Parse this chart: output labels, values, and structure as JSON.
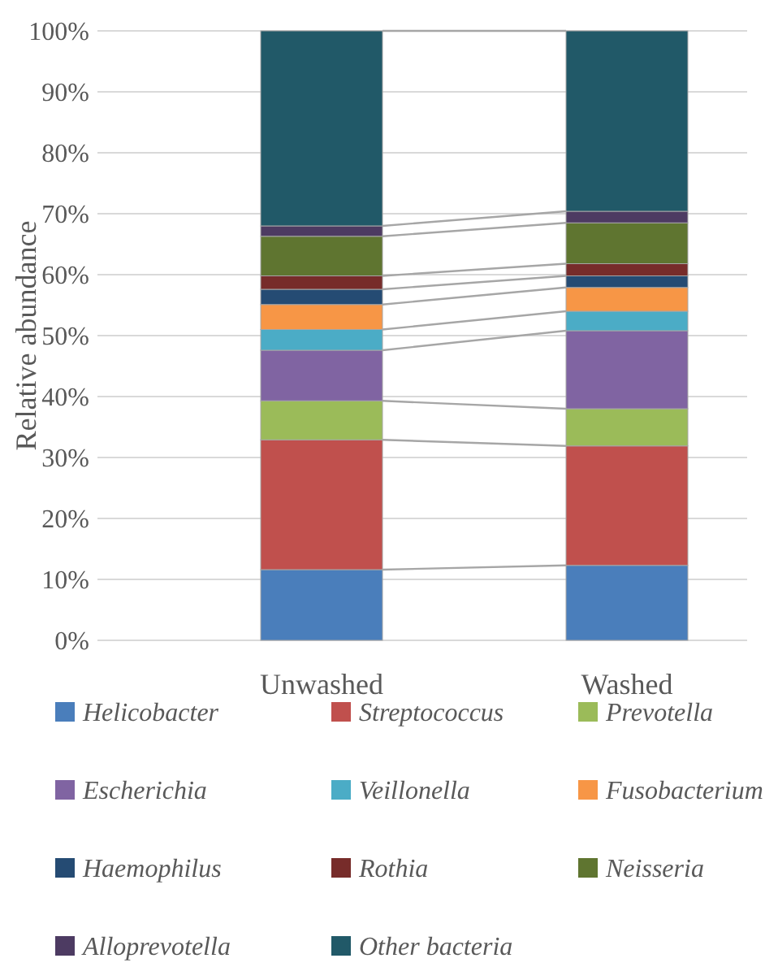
{
  "chart_data": {
    "type": "bar",
    "stacked": true,
    "ylabel": "Relative abundance",
    "categories": [
      "Unwashed",
      "Washed"
    ],
    "ylim": [
      0,
      100
    ],
    "yticks": [
      {
        "value": 0,
        "label": "0%"
      },
      {
        "value": 10,
        "label": "10%"
      },
      {
        "value": 20,
        "label": "20%"
      },
      {
        "value": 30,
        "label": "30%"
      },
      {
        "value": 40,
        "label": "40%"
      },
      {
        "value": 50,
        "label": "50%"
      },
      {
        "value": 60,
        "label": "60%"
      },
      {
        "value": 70,
        "label": "70%"
      },
      {
        "value": 80,
        "label": "80%"
      },
      {
        "value": 90,
        "label": "90%"
      },
      {
        "value": 100,
        "label": "100%"
      }
    ],
    "grid": "y",
    "legend": "bottom",
    "series": [
      {
        "name": "Helicobacter",
        "color": "#4a7ebb",
        "values": [
          11.6,
          12.3
        ]
      },
      {
        "name": "Streptococcus",
        "color": "#c0504d",
        "values": [
          21.3,
          19.6
        ]
      },
      {
        "name": "Prevotella",
        "color": "#9bbb59",
        "values": [
          6.4,
          6.1
        ]
      },
      {
        "name": "Escherichia",
        "color": "#8064a2",
        "values": [
          8.3,
          12.8
        ]
      },
      {
        "name": "Veillonella",
        "color": "#4bacc6",
        "values": [
          3.4,
          3.2
        ]
      },
      {
        "name": "Fusobacterium",
        "color": "#f79646",
        "values": [
          4.1,
          3.9
        ]
      },
      {
        "name": "Haemophilus",
        "color": "#254b73",
        "values": [
          2.5,
          1.9
        ]
      },
      {
        "name": "Rothia",
        "color": "#772c2a",
        "values": [
          2.2,
          2.0
        ]
      },
      {
        "name": "Neisseria",
        "color": "#5f7530",
        "values": [
          6.5,
          6.7
        ]
      },
      {
        "name": "Alloprevotella",
        "color": "#4d3b62",
        "values": [
          1.7,
          1.9
        ]
      },
      {
        "name": "Other bacteria",
        "color": "#215968",
        "values": [
          32.0,
          29.6
        ]
      }
    ]
  }
}
